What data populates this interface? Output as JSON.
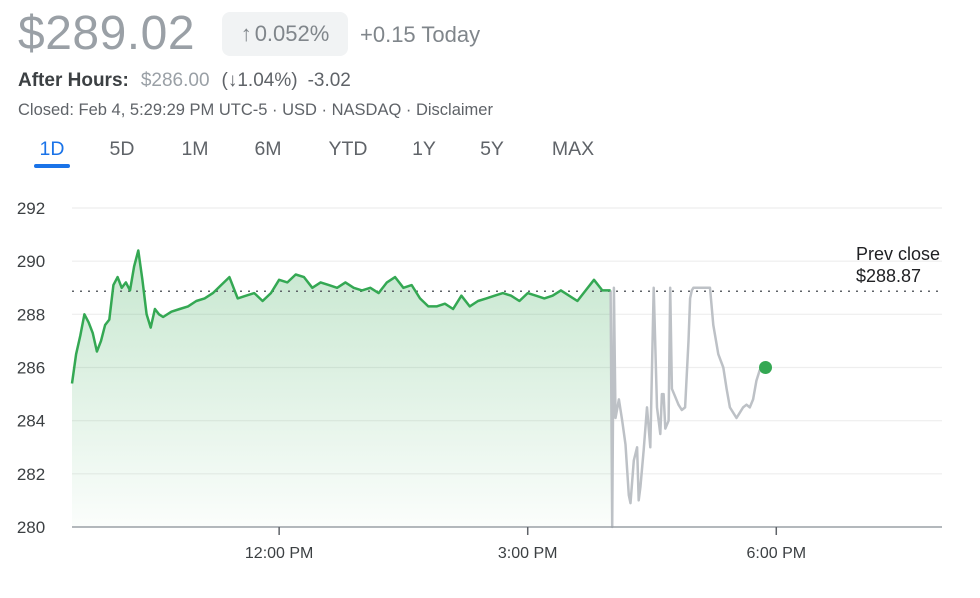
{
  "header": {
    "price": "$289.02",
    "change_arrow": "↑",
    "change_pct": "0.052%",
    "change_today": "+0.15 Today",
    "after_hours_label": "After Hours:",
    "after_hours_price": "$286.00",
    "after_hours_pct": "(↓1.04%)",
    "after_hours_change": "-3.02",
    "closed_line": "Closed: Feb 4, 5:29:29 PM UTC-5 · USD · NASDAQ · Disclaimer"
  },
  "tabs": [
    "1D",
    "5D",
    "1M",
    "6M",
    "YTD",
    "1Y",
    "5Y",
    "MAX"
  ],
  "active_tab": "1D",
  "colors": {
    "accent": "#1a73e8",
    "up_line": "#34a853",
    "after_hours_line": "#bdc1c6",
    "grid": "#eeeeee"
  },
  "chart_data": {
    "type": "line",
    "ylim": [
      280,
      292
    ],
    "yticks": [
      280,
      282,
      284,
      286,
      288,
      290,
      292
    ],
    "xlim": [
      9.5,
      20.0
    ],
    "xticks": [
      12,
      15,
      18
    ],
    "xtick_labels": [
      "12:00 PM",
      "3:00 PM",
      "6:00 PM"
    ],
    "prev_close": {
      "label": "Prev close",
      "value": 288.87,
      "value_label": "$288.87"
    },
    "series": [
      {
        "session": "regular",
        "color": "#34a853",
        "x": [
          9.5,
          9.55,
          9.6,
          9.65,
          9.7,
          9.75,
          9.8,
          9.85,
          9.9,
          9.95,
          10.0,
          10.05,
          10.1,
          10.15,
          10.2,
          10.25,
          10.3,
          10.35,
          10.4,
          10.45,
          10.5,
          10.55,
          10.6,
          10.7,
          10.8,
          10.9,
          11.0,
          11.1,
          11.2,
          11.3,
          11.4,
          11.5,
          11.6,
          11.7,
          11.8,
          11.9,
          12.0,
          12.1,
          12.2,
          12.3,
          12.4,
          12.5,
          12.6,
          12.7,
          12.8,
          12.9,
          13.0,
          13.1,
          13.2,
          13.3,
          13.4,
          13.5,
          13.6,
          13.7,
          13.8,
          13.9,
          14.0,
          14.1,
          14.2,
          14.3,
          14.4,
          14.5,
          14.6,
          14.7,
          14.8,
          14.9,
          15.0,
          15.1,
          15.2,
          15.3,
          15.4,
          15.5,
          15.6,
          15.7,
          15.8,
          15.9,
          16.0
        ],
        "y": [
          285.4,
          286.5,
          287.2,
          288.0,
          287.7,
          287.3,
          286.6,
          287.0,
          287.6,
          287.8,
          289.1,
          289.4,
          289.0,
          289.2,
          288.9,
          289.8,
          290.4,
          289.3,
          288.0,
          287.5,
          288.2,
          288.0,
          287.9,
          288.1,
          288.2,
          288.3,
          288.5,
          288.6,
          288.8,
          289.1,
          289.4,
          288.6,
          288.7,
          288.8,
          288.5,
          288.8,
          289.3,
          289.2,
          289.5,
          289.4,
          289.0,
          289.2,
          289.1,
          289.0,
          289.2,
          289.0,
          288.9,
          289.0,
          288.8,
          289.2,
          289.4,
          289.0,
          289.1,
          288.6,
          288.3,
          288.3,
          288.4,
          288.2,
          288.7,
          288.3,
          288.5,
          288.6,
          288.7,
          288.8,
          288.7,
          288.5,
          288.8,
          288.7,
          288.6,
          288.7,
          288.9,
          288.7,
          288.5,
          288.9,
          289.3,
          288.9,
          288.9
        ]
      },
      {
        "session": "after_hours",
        "color": "#bdc1c6",
        "x": [
          16.0,
          16.02,
          16.04,
          16.06,
          16.1,
          16.14,
          16.18,
          16.22,
          16.24,
          16.28,
          16.32,
          16.34,
          16.36,
          16.4,
          16.44,
          16.48,
          16.52,
          16.56,
          16.6,
          16.62,
          16.64,
          16.66,
          16.7,
          16.72,
          16.74,
          16.78,
          16.82,
          16.86,
          16.9,
          16.94,
          16.96,
          16.98,
          17.0,
          17.04,
          17.08,
          17.12,
          17.16,
          17.2,
          17.24,
          17.3,
          17.36,
          17.4,
          17.44,
          17.48,
          17.52,
          17.56,
          17.6,
          17.64,
          17.68,
          17.72,
          17.76,
          17.8,
          17.84,
          17.87
        ],
        "y": [
          288.9,
          280.0,
          289.0,
          284.1,
          284.8,
          284.0,
          283.1,
          281.2,
          280.9,
          282.5,
          283.0,
          281.0,
          281.5,
          282.9,
          284.5,
          283.0,
          289.0,
          284.5,
          283.5,
          285.0,
          285.0,
          283.7,
          284.0,
          289.0,
          285.2,
          284.9,
          284.6,
          284.4,
          284.5,
          287.0,
          288.6,
          288.9,
          289.0,
          289.0,
          289.0,
          289.0,
          289.0,
          289.0,
          287.6,
          286.5,
          286.0,
          285.2,
          284.5,
          284.3,
          284.1,
          284.3,
          284.5,
          284.6,
          284.5,
          284.8,
          285.5,
          285.9,
          286.0,
          286.0
        ]
      }
    ],
    "last_point": {
      "x": 17.87,
      "y": 286.0
    }
  }
}
